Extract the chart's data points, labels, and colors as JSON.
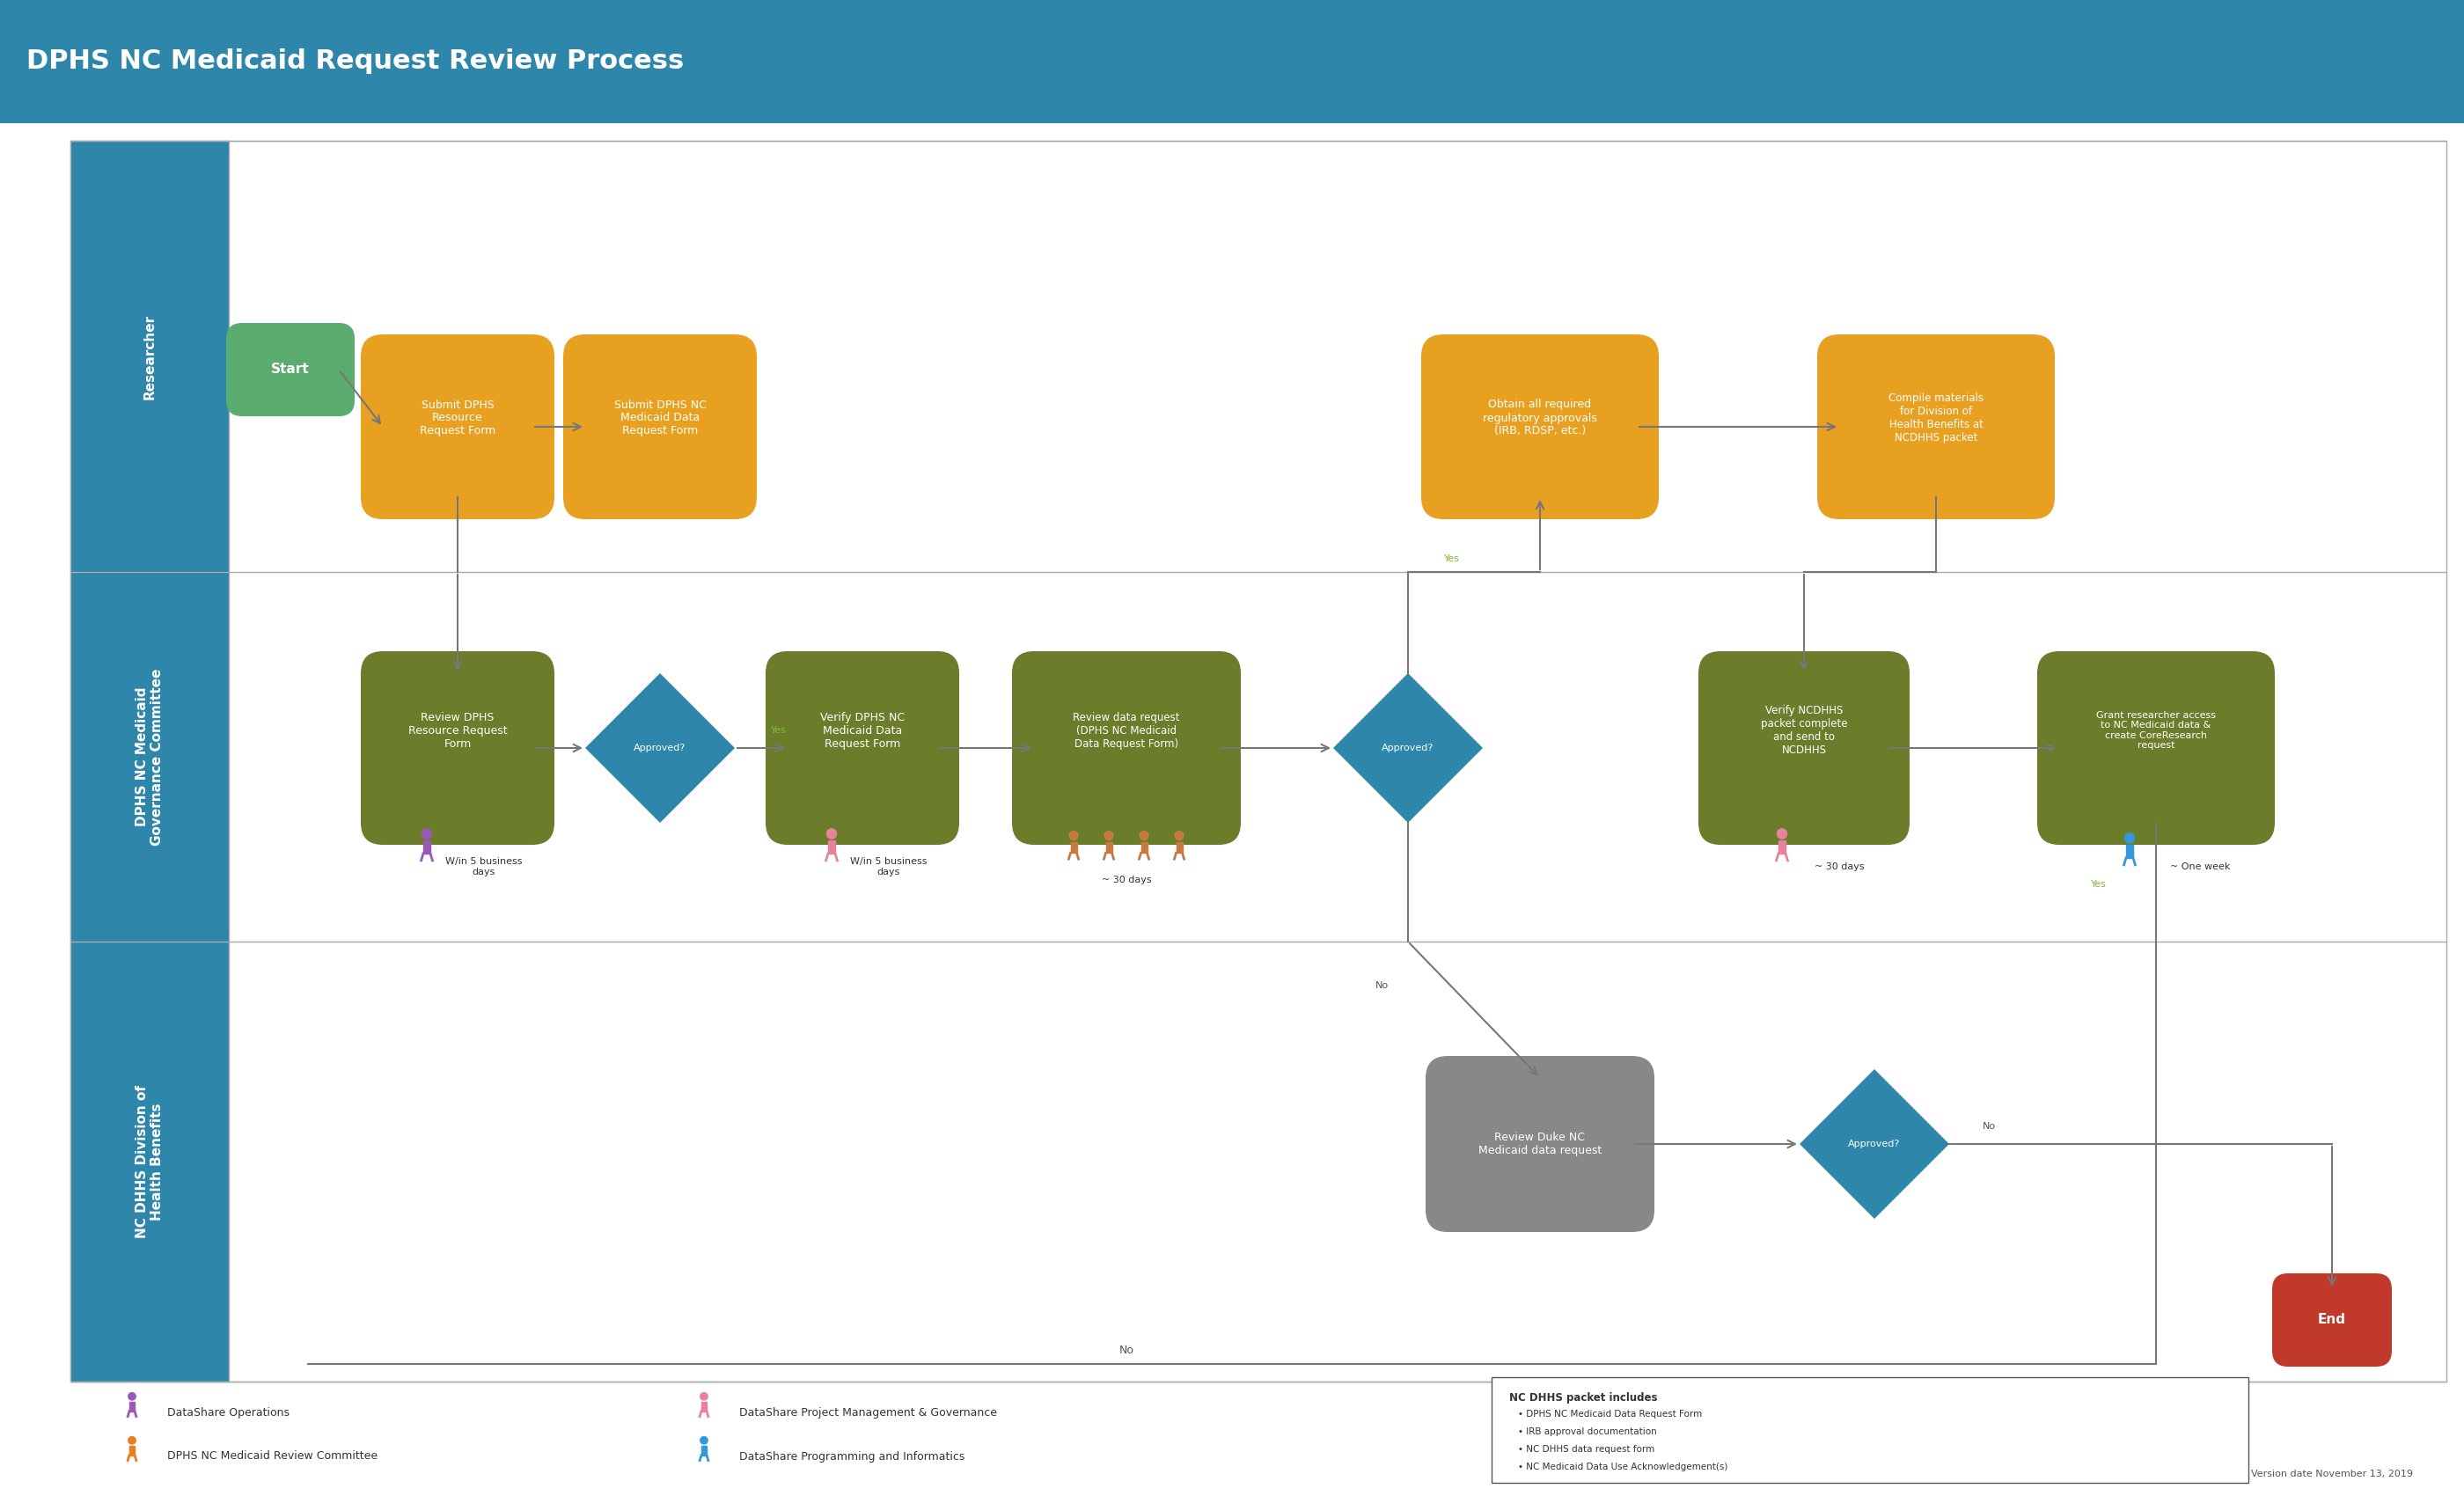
{
  "title": "DPHS NC Medicaid Request Review Process",
  "title_bg": "#2E86AB",
  "title_color": "white",
  "title_fontsize": 22,
  "swimlane_bg": "#2E86AB",
  "swimlane_text_color": "white",
  "diagram_bg": "white",
  "border_color": "#999999",
  "swimlanes": [
    "Researcher",
    "DPHS NC Medicaid\nGovernance Committee",
    "NC DHHS Division of\nHealth Benefits"
  ],
  "orange_box": "#E8A020",
  "green_box": "#6B7C2A",
  "blue_diamond": "#2E86AB",
  "gray_box": "#888888",
  "red_oval": "#C0392B",
  "green_oval": "#5BAD6F",
  "arrow_color": "#555555",
  "yes_color": "#7DB83A",
  "no_color": "#555555",
  "legend_items": [
    {
      "icon_color": "#9B59B6",
      "text": "DataShare Operations"
    },
    {
      "icon_color": "#E67E22",
      "text": "DPHS NC Medicaid Review Committee"
    },
    {
      "icon_color": "#E8829A",
      "text": "DataShare Project Management & Governance"
    },
    {
      "icon_color": "#3498DB",
      "text": "DataShare Programming and Informatics"
    }
  ],
  "ncdhhs_box_title": "NC DHHS packet includes",
  "ncdhhs_box_items": [
    "DPHS NC Medicaid Data Request Form",
    "IRB approval documentation",
    "NC DHHS data request form",
    "NC Medicaid Data Use Acknowledgement(s)"
  ],
  "version_text": "Version date November 13, 2019"
}
